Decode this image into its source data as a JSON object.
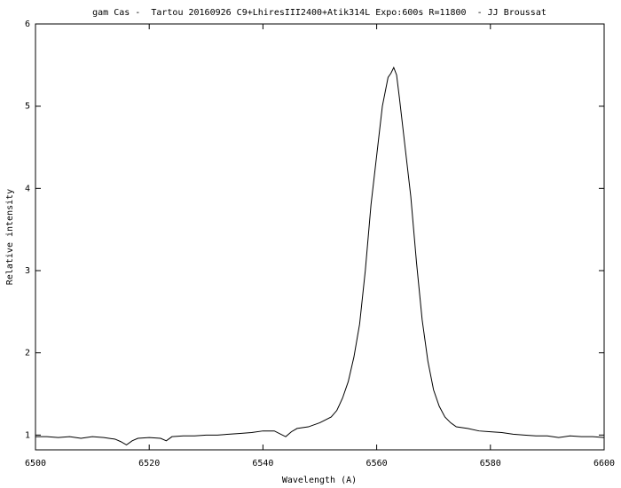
{
  "chart_data": {
    "type": "line",
    "title": "gam Cas -  Tartou 20160926 C9+LhiresIII2400+Atik314L Expo:600s R=11800  - JJ Broussat",
    "x_label": "Wavelength (A)",
    "y_label": "Relative intensity",
    "x": [
      6500,
      6502,
      6504,
      6506,
      6508,
      6510,
      6512,
      6514,
      6515,
      6516,
      6517,
      6518,
      6520,
      6522,
      6523,
      6524,
      6526,
      6528,
      6530,
      6532,
      6534,
      6536,
      6538,
      6540,
      6542,
      6544,
      6545,
      6546,
      6548,
      6550,
      6552,
      6553,
      6554,
      6555,
      6556,
      6557,
      6558,
      6559,
      6560,
      6561,
      6562,
      6562.5,
      6563,
      6563.5,
      6564,
      6565,
      6566,
      6567,
      6568,
      6569,
      6570,
      6571,
      6572,
      6573,
      6574,
      6576,
      6578,
      6580,
      6582,
      6584,
      6586,
      6588,
      6590,
      6592,
      6594,
      6596,
      6598,
      6600
    ],
    "values": [
      0.98,
      0.98,
      0.97,
      0.98,
      0.96,
      0.98,
      0.97,
      0.95,
      0.92,
      0.88,
      0.93,
      0.96,
      0.97,
      0.96,
      0.93,
      0.98,
      0.99,
      0.99,
      1.0,
      1.0,
      1.01,
      1.02,
      1.03,
      1.05,
      1.05,
      0.98,
      1.04,
      1.08,
      1.1,
      1.15,
      1.22,
      1.3,
      1.45,
      1.65,
      1.95,
      2.35,
      3.0,
      3.8,
      4.4,
      5.0,
      5.35,
      5.4,
      5.47,
      5.38,
      5.1,
      4.5,
      3.9,
      3.1,
      2.4,
      1.9,
      1.55,
      1.35,
      1.22,
      1.15,
      1.1,
      1.08,
      1.05,
      1.04,
      1.03,
      1.01,
      1.0,
      0.99,
      0.99,
      0.97,
      0.99,
      0.98,
      0.98,
      0.97
    ],
    "color": "#000000",
    "xlim": [
      6500,
      6600
    ],
    "xticks": [
      6500,
      6520,
      6540,
      6560,
      6580,
      6600
    ],
    "ylim": [
      0.82,
      6
    ],
    "yticks": [
      1,
      2,
      3,
      4,
      5,
      6
    ],
    "grid": false
  }
}
